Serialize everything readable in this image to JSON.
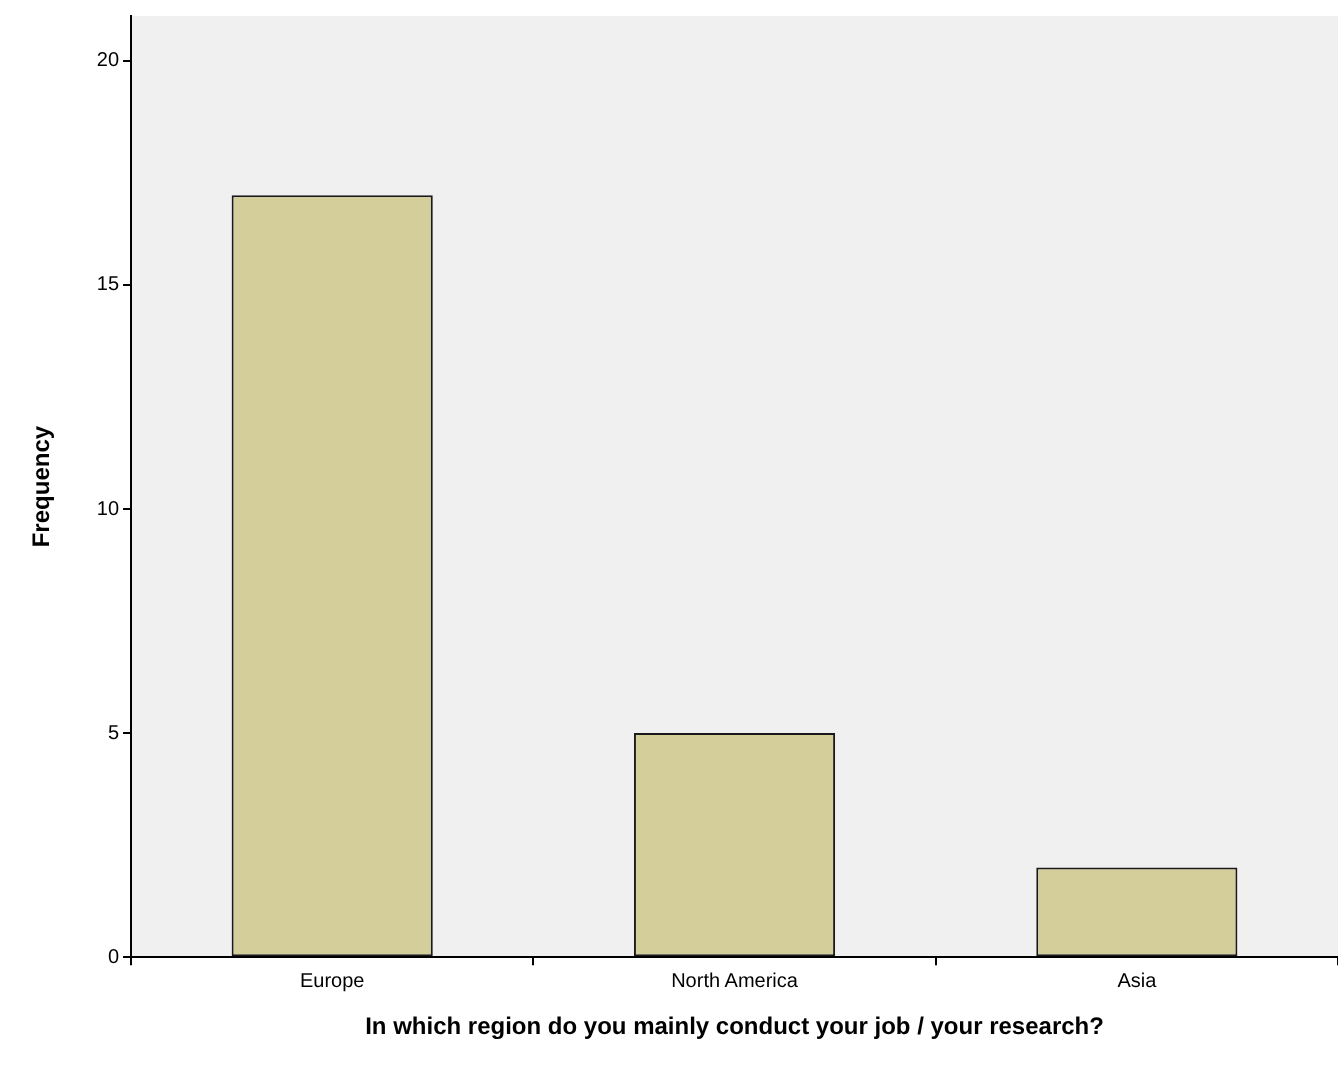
{
  "chart_data": {
    "type": "bar",
    "xlabel": "In which region do you mainly conduct your job / your research?",
    "ylabel": "Frequency",
    "categories": [
      "Europe",
      "North America",
      "Asia"
    ],
    "values": [
      17,
      5,
      2
    ],
    "color": "#d3ce9a",
    "ylim": [
      0,
      21
    ],
    "yticks": [
      0,
      5,
      10,
      15,
      20
    ],
    "grid": false,
    "legend": false
  }
}
